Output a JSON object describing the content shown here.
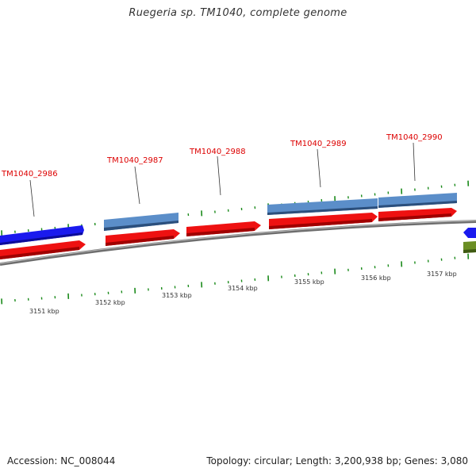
{
  "title": "Ruegeria sp. TM1040, complete genome",
  "footer": {
    "accession": "Accession: NC_008044",
    "summary": "Topology: circular; Length: 3,200,938 bp; Genes: 3,080"
  },
  "gene_labels": [
    "TM1040_2986",
    "TM1040_2987",
    "TM1040_2988",
    "TM1040_2989",
    "TM1040_2990"
  ],
  "kbp_labels": [
    "3151 kbp",
    "3152 kbp",
    "3153 kbp",
    "3154 kbp",
    "3155 kbp",
    "3156 kbp",
    "3157 kbp"
  ],
  "colors": {
    "gene_label": "#dd0000",
    "cds_red": "#ee1111",
    "gene_blue": "#1a1aee",
    "gene_steelblue": "#4f81bd",
    "other_green": "#6b8e23",
    "backbone": "#888888",
    "ticks": "#1a8a1a"
  }
}
